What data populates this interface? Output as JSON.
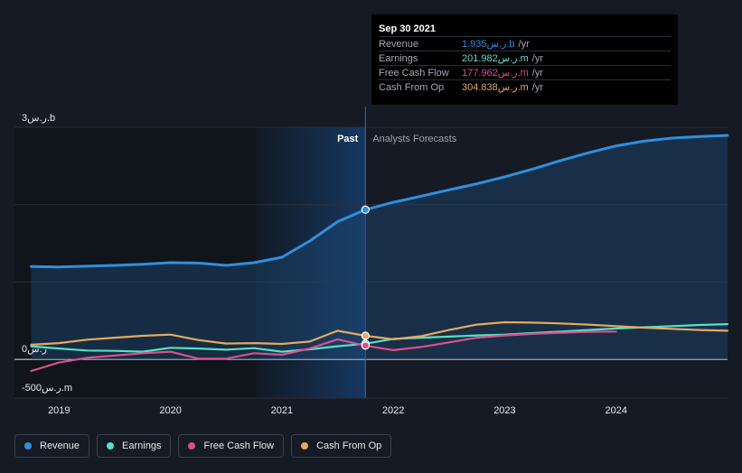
{
  "tooltip": {
    "date": "Sep 30 2021",
    "rows": [
      {
        "label": "Revenue",
        "value": "1.935ر.س.b",
        "unit": "/yr",
        "color": "#2f8fdf"
      },
      {
        "label": "Earnings",
        "value": "201.982ر.س.m",
        "unit": "/yr",
        "color": "#56e0c8"
      },
      {
        "label": "Free Cash Flow",
        "value": "177.962ر.س.m",
        "unit": "/yr",
        "color": "#d9508c"
      },
      {
        "label": "Cash From Op",
        "value": "304.838ر.س.m",
        "unit": "/yr",
        "color": "#e8a860"
      }
    ]
  },
  "legend": [
    {
      "label": "Revenue",
      "color": "#2f8fdf"
    },
    {
      "label": "Earnings",
      "color": "#56e0c8"
    },
    {
      "label": "Free Cash Flow",
      "color": "#d9508c"
    },
    {
      "label": "Cash From Op",
      "color": "#e8a860"
    }
  ],
  "chart_data": {
    "type": "line",
    "y_axis_labels": {
      "top": "3ر.س.b",
      "zero": "0ر.س",
      "bottom": "-500ر.س.m"
    },
    "ylim": [
      -500,
      3000
    ],
    "y_unit": "ر.س.m",
    "periods": {
      "past": "Past",
      "forecast": "Analysts Forecasts"
    },
    "divider_x": 2021.75,
    "xlim": [
      2018.6,
      2025.0
    ],
    "xticks": [
      {
        "value": 2019,
        "label": "2019"
      },
      {
        "value": 2020,
        "label": "2020"
      },
      {
        "value": 2021,
        "label": "2021"
      },
      {
        "value": 2022,
        "label": "2022"
      },
      {
        "value": 2023,
        "label": "2023"
      },
      {
        "value": 2024,
        "label": "2024"
      }
    ],
    "grid": true,
    "series": [
      {
        "name": "Revenue",
        "color": "#2f8fdf",
        "area": true,
        "points": [
          [
            2018.75,
            1200
          ],
          [
            2019.0,
            1195
          ],
          [
            2019.25,
            1205
          ],
          [
            2019.5,
            1215
          ],
          [
            2019.75,
            1230
          ],
          [
            2020.0,
            1250
          ],
          [
            2020.25,
            1245
          ],
          [
            2020.5,
            1215
          ],
          [
            2020.75,
            1250
          ],
          [
            2021.0,
            1320
          ],
          [
            2021.25,
            1530
          ],
          [
            2021.5,
            1780
          ],
          [
            2021.75,
            1935
          ],
          [
            2022.0,
            2030
          ],
          [
            2022.25,
            2110
          ],
          [
            2022.5,
            2190
          ],
          [
            2022.75,
            2270
          ],
          [
            2023.0,
            2360
          ],
          [
            2023.25,
            2460
          ],
          [
            2023.5,
            2570
          ],
          [
            2023.75,
            2670
          ],
          [
            2024.0,
            2760
          ],
          [
            2024.25,
            2820
          ],
          [
            2024.5,
            2860
          ],
          [
            2024.75,
            2880
          ],
          [
            2025.0,
            2895
          ]
        ]
      },
      {
        "name": "Earnings",
        "color": "#56e0c8",
        "points": [
          [
            2018.75,
            170
          ],
          [
            2019.0,
            140
          ],
          [
            2019.25,
            115
          ],
          [
            2019.5,
            110
          ],
          [
            2019.75,
            100
          ],
          [
            2020.0,
            150
          ],
          [
            2020.25,
            140
          ],
          [
            2020.5,
            125
          ],
          [
            2020.75,
            145
          ],
          [
            2021.0,
            100
          ],
          [
            2021.25,
            130
          ],
          [
            2021.5,
            170
          ],
          [
            2021.75,
            202
          ],
          [
            2022.0,
            265
          ],
          [
            2022.25,
            280
          ],
          [
            2022.5,
            295
          ],
          [
            2022.75,
            310
          ],
          [
            2023.0,
            320
          ],
          [
            2023.25,
            340
          ],
          [
            2023.5,
            360
          ],
          [
            2023.75,
            380
          ],
          [
            2024.0,
            400
          ],
          [
            2024.25,
            415
          ],
          [
            2024.5,
            430
          ],
          [
            2024.75,
            445
          ],
          [
            2025.0,
            455
          ]
        ]
      },
      {
        "name": "Free Cash Flow",
        "color": "#d9508c",
        "points": [
          [
            2018.75,
            -150
          ],
          [
            2019.0,
            -40
          ],
          [
            2019.25,
            20
          ],
          [
            2019.5,
            50
          ],
          [
            2019.75,
            80
          ],
          [
            2020.0,
            100
          ],
          [
            2020.25,
            10
          ],
          [
            2020.5,
            10
          ],
          [
            2020.75,
            80
          ],
          [
            2021.0,
            60
          ],
          [
            2021.25,
            140
          ],
          [
            2021.5,
            260
          ],
          [
            2021.75,
            178
          ],
          [
            2022.0,
            120
          ],
          [
            2022.25,
            160
          ],
          [
            2022.5,
            220
          ],
          [
            2022.75,
            280
          ],
          [
            2023.0,
            310
          ],
          [
            2023.25,
            330
          ],
          [
            2023.5,
            345
          ],
          [
            2023.75,
            355
          ],
          [
            2024.0,
            360
          ]
        ]
      },
      {
        "name": "Cash From Op",
        "color": "#e8a860",
        "points": [
          [
            2018.75,
            190
          ],
          [
            2019.0,
            210
          ],
          [
            2019.25,
            255
          ],
          [
            2019.5,
            280
          ],
          [
            2019.75,
            305
          ],
          [
            2020.0,
            320
          ],
          [
            2020.25,
            250
          ],
          [
            2020.5,
            205
          ],
          [
            2020.75,
            210
          ],
          [
            2021.0,
            200
          ],
          [
            2021.25,
            230
          ],
          [
            2021.5,
            370
          ],
          [
            2021.75,
            305
          ],
          [
            2022.0,
            260
          ],
          [
            2022.25,
            300
          ],
          [
            2022.5,
            380
          ],
          [
            2022.75,
            450
          ],
          [
            2023.0,
            480
          ],
          [
            2023.25,
            475
          ],
          [
            2023.5,
            465
          ],
          [
            2023.75,
            450
          ],
          [
            2024.0,
            430
          ],
          [
            2024.25,
            410
          ],
          [
            2024.5,
            395
          ],
          [
            2024.75,
            380
          ],
          [
            2025.0,
            370
          ]
        ]
      }
    ],
    "highlight_x": 2021.75
  }
}
